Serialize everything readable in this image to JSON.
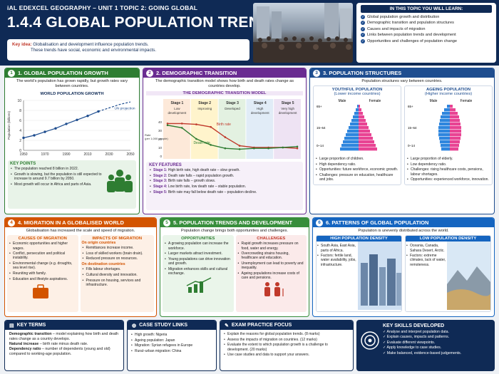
{
  "header": {
    "subtitle": "iAL EDEXCEL GEOGRAPHY – UNIT 1 TOPIC 2: GOING GLOBAL",
    "title": "1.4.4 GLOBAL POPULATION TRENDS",
    "key_idea_label": "Key idea:",
    "key_idea_line1": "Globalisation and development influence population trends.",
    "key_idea_line2": "These trends have social, economic and environmental impacts."
  },
  "learn": {
    "title": "IN THIS TOPIC YOU WILL LEARN:",
    "items": [
      "Global population growth and distribution",
      "Demographic transition and population structures",
      "Causes and impacts of migration",
      "Links between population trends and development",
      "Opportunities and challenges of population change"
    ]
  },
  "p1": {
    "num": "1",
    "title": "1. GLOBAL POPULATION GROWTH",
    "desc": "The world's population has grown rapidly, but growth rates vary between countries.",
    "chart_title": "WORLD POPULATION GROWTH",
    "projection": "UN projection",
    "key_points_title": "KEY POINTS",
    "points": [
      "The population reached 8 billion in 2022.",
      "Growth is slowing, but the population is still expected to increase to around 9.7 billion by 2050.",
      "Most growth will occur in Africa and parts of Asia."
    ]
  },
  "p2": {
    "num": "2",
    "title": "2. DEMOGRAPHIC TRANSITION",
    "desc": "The demographic transition model shows how birth and death rates change as countries develop.",
    "model_title": "THE DEMOGRAPHIC TRANSITION MODEL",
    "stages": [
      {
        "name": "Stage 1",
        "desc": "Low development"
      },
      {
        "name": "Stage 2",
        "desc": "Improving"
      },
      {
        "name": "Stage 3",
        "desc": "Developed"
      },
      {
        "name": "Stage 4",
        "desc": "High development"
      },
      {
        "name": "Stage 5",
        "desc": "Very high development"
      }
    ],
    "ylabel": "Rate (per 1,000 people)",
    "birth_label": "Birth rate",
    "death_label": "Death rate",
    "features_title": "KEY FEATURES",
    "features": [
      {
        "s": "Stage 1:",
        "t": "High birth rate, high death rate – slow growth."
      },
      {
        "s": "Stage 2:",
        "t": "Death rate falls – rapid population growth."
      },
      {
        "s": "Stage 3:",
        "t": "Birth rate falls – growth slows."
      },
      {
        "s": "Stage 4:",
        "t": "Low birth rate, low death rate – stable population."
      },
      {
        "s": "Stage 5:",
        "t": "Birth rate may fall below death rate – population decline."
      }
    ]
  },
  "p3": {
    "num": "3",
    "title": "3. POPULATION STRUCTURES",
    "desc": "Population structures vary between countries.",
    "young_title": "YOUTHFUL POPULATION",
    "young_sub": "(Lower income countries)",
    "aging_title": "AGEING POPULATION",
    "aging_sub": "(Higher income countries)",
    "male": "Male",
    "female": "Female",
    "ages": [
      "65+",
      "15–64",
      "0–14"
    ],
    "young_points": [
      "Large proportion of children.",
      "High dependency ratio.",
      "Opportunities: future workforce, economic growth.",
      "Challenges: pressure on education, healthcare and jobs."
    ],
    "aging_points": [
      "Large proportion of elderly.",
      "Low dependency ratio.",
      "Challenges: rising healthcare costs, pensions, labour shortages.",
      "Opportunities: experienced workforce, innovation."
    ]
  },
  "p4": {
    "num": "4",
    "title": "4. MIGRATION IN A GLOBALISED WORLD",
    "desc": "Globalisation has increased the scale and speed of migration.",
    "causes_title": "CAUSES OF MIGRATION",
    "causes": [
      "Economic opportunities and higher wages.",
      "Conflict, persecution and political instability.",
      "Environmental change (e.g. droughts, sea level rise).",
      "Reuniting with family.",
      "Education and lifestyle aspirations."
    ],
    "impacts_title": "IMPACTS OF MIGRATION",
    "origin_title": "On origin countries",
    "origin": [
      "Remittances increase income.",
      "Loss of skilled workers (brain drain).",
      "Reduced pressure on resources."
    ],
    "dest_title": "On destination countries",
    "dest": [
      "Fills labour shortages.",
      "Cultural diversity and innovation.",
      "Pressure on housing, services and infrastructure."
    ]
  },
  "p5": {
    "num": "5",
    "title": "5. POPULATION TRENDS AND DEVELOPMENT",
    "desc": "Population change brings both opportunities and challenges.",
    "opp_title": "OPPORTUNITIES",
    "ch_title": "CHALLENGES",
    "opps": [
      "A growing population can increase the workforce.",
      "Larger markets attract investment.",
      "Young populations can drive innovation and growth.",
      "Migration enhances skills and cultural exchange."
    ],
    "chs": [
      "Rapid growth increases pressure on food, water and energy.",
      "Overcrowding strains housing, healthcare and education.",
      "Unemployment can lead to poverty and inequality.",
      "Ageing populations increase costs of care and pensions."
    ]
  },
  "p6": {
    "num": "6",
    "title": "6. PATTERNS OF GLOBAL POPULATION",
    "desc": "Population is unevenly distributed across the world.",
    "high_title": "HIGH POPULATION DENSITY",
    "low_title": "LOW POPULATION DENSITY",
    "high": [
      "South Asia, East Asia, parts of Africa.",
      "Factors: fertile land, water availability, jobs, infrastructure."
    ],
    "low": [
      "Oceania, Canada, Sahara Desert, Arctic.",
      "Factors: extreme climates, lack of water, remoteness."
    ]
  },
  "terms": {
    "title": "KEY TERMS",
    "items": [
      {
        "b": "Demographic transition",
        "t": " – model explaining how birth and death rates change as a country develops."
      },
      {
        "b": "Natural increase",
        "t": " – birth rate minus death rate."
      },
      {
        "b": "Dependency ratio",
        "t": " – number of dependents (young and old) compared to working-age population."
      }
    ]
  },
  "cases": {
    "title": "CASE STUDY LINKS",
    "items": [
      "High growth: Nigeria",
      "Ageing population: Japan",
      "Migration: Syrian refugees in Europe",
      "Rural–urban migration: China"
    ]
  },
  "exam": {
    "title": "EXAM PRACTICE FOCUS",
    "items": [
      "Explain the reasons for global population trends. (8 marks)",
      "Assess the impacts of migration on countries. (12 marks)",
      "Evaluate the extent to which population growth is a challenge to development. (20 marks)",
      "Use case studies and data to support your answers."
    ]
  },
  "skills": {
    "title": "KEY SKILLS DEVELOPED",
    "items": [
      "Analyse and interpret population data.",
      "Explain causes, impacts and patterns.",
      "Evaluate different viewpoints.",
      "Apply knowledge to case studies.",
      "Make balanced, evidence-based judgements."
    ]
  },
  "chart_data": [
    {
      "type": "line",
      "title": "WORLD POPULATION GROWTH",
      "ylabel": "Population (billions)",
      "x": [
        1950,
        1960,
        1970,
        1980,
        1990,
        2000,
        2010,
        2020,
        2030,
        2040,
        2050
      ],
      "values": [
        2.5,
        3.0,
        3.7,
        4.4,
        5.3,
        6.1,
        6.9,
        7.8,
        8.5,
        9.2,
        9.7
      ],
      "projected_from": 2020,
      "xticks": [
        1950,
        1970,
        1990,
        2010,
        2030,
        2050
      ],
      "yticks": [
        0,
        2,
        4,
        6,
        8,
        10
      ],
      "ylim": [
        0,
        10
      ],
      "xlim": [
        1950,
        2050
      ]
    },
    {
      "type": "line",
      "title": "THE DEMOGRAPHIC TRANSITION MODEL",
      "x": [
        1,
        2,
        3,
        4,
        5,
        6,
        7,
        8,
        9,
        10
      ],
      "series": [
        {
          "name": "Birth rate",
          "values": [
            38,
            38,
            37,
            34,
            22,
            12,
            10,
            10,
            10,
            9
          ]
        },
        {
          "name": "Death rate",
          "values": [
            36,
            33,
            20,
            13,
            9,
            8,
            9,
            9,
            10,
            11
          ]
        }
      ],
      "ylim": [
        0,
        45
      ],
      "yticks": [
        0,
        10,
        20,
        30,
        40
      ]
    }
  ]
}
